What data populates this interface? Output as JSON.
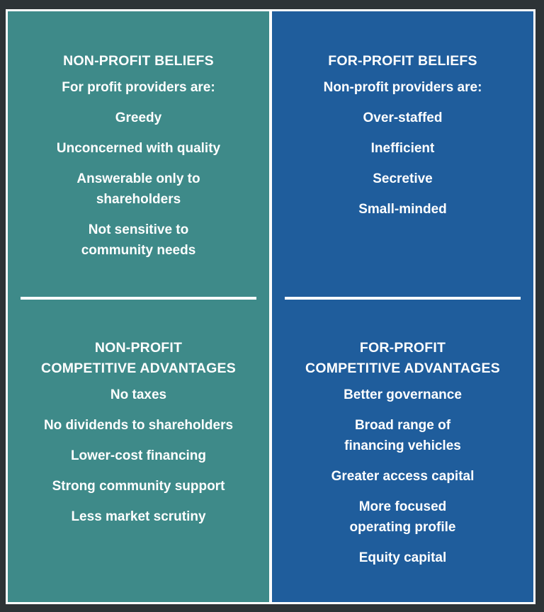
{
  "non_profit": {
    "beliefs_heading": "NON-PROFIT BELIEFS",
    "beliefs_intro": "For profit providers are:",
    "beliefs_items": [
      "Greedy",
      "Unconcerned with quality",
      "Answerable only to\nshareholders",
      "Not sensitive to\ncommunity needs"
    ],
    "advantages_heading": "NON-PROFIT\nCOMPETITIVE ADVANTAGES",
    "advantages_items": [
      "No taxes",
      "No dividends to shareholders",
      "Lower-cost financing",
      "Strong community support",
      "Less market scrutiny"
    ]
  },
  "for_profit": {
    "beliefs_heading": "FOR-PROFIT BELIEFS",
    "beliefs_intro": "Non-profit providers are:",
    "beliefs_items": [
      "Over-staffed",
      "Inefficient",
      "Secretive",
      "Small-minded"
    ],
    "advantages_heading": "FOR-PROFIT\nCOMPETITIVE ADVANTAGES",
    "advantages_items": [
      "Better governance",
      "Broad range of\nfinancing vehicles",
      "Greater access capital",
      "More focused\noperating profile",
      "Equity capital"
    ]
  },
  "colors": {
    "non_profit_panel": "#3e8a89",
    "for_profit_panel": "#1f5d9c",
    "text": "#ffffff",
    "background": "#2d3336"
  }
}
